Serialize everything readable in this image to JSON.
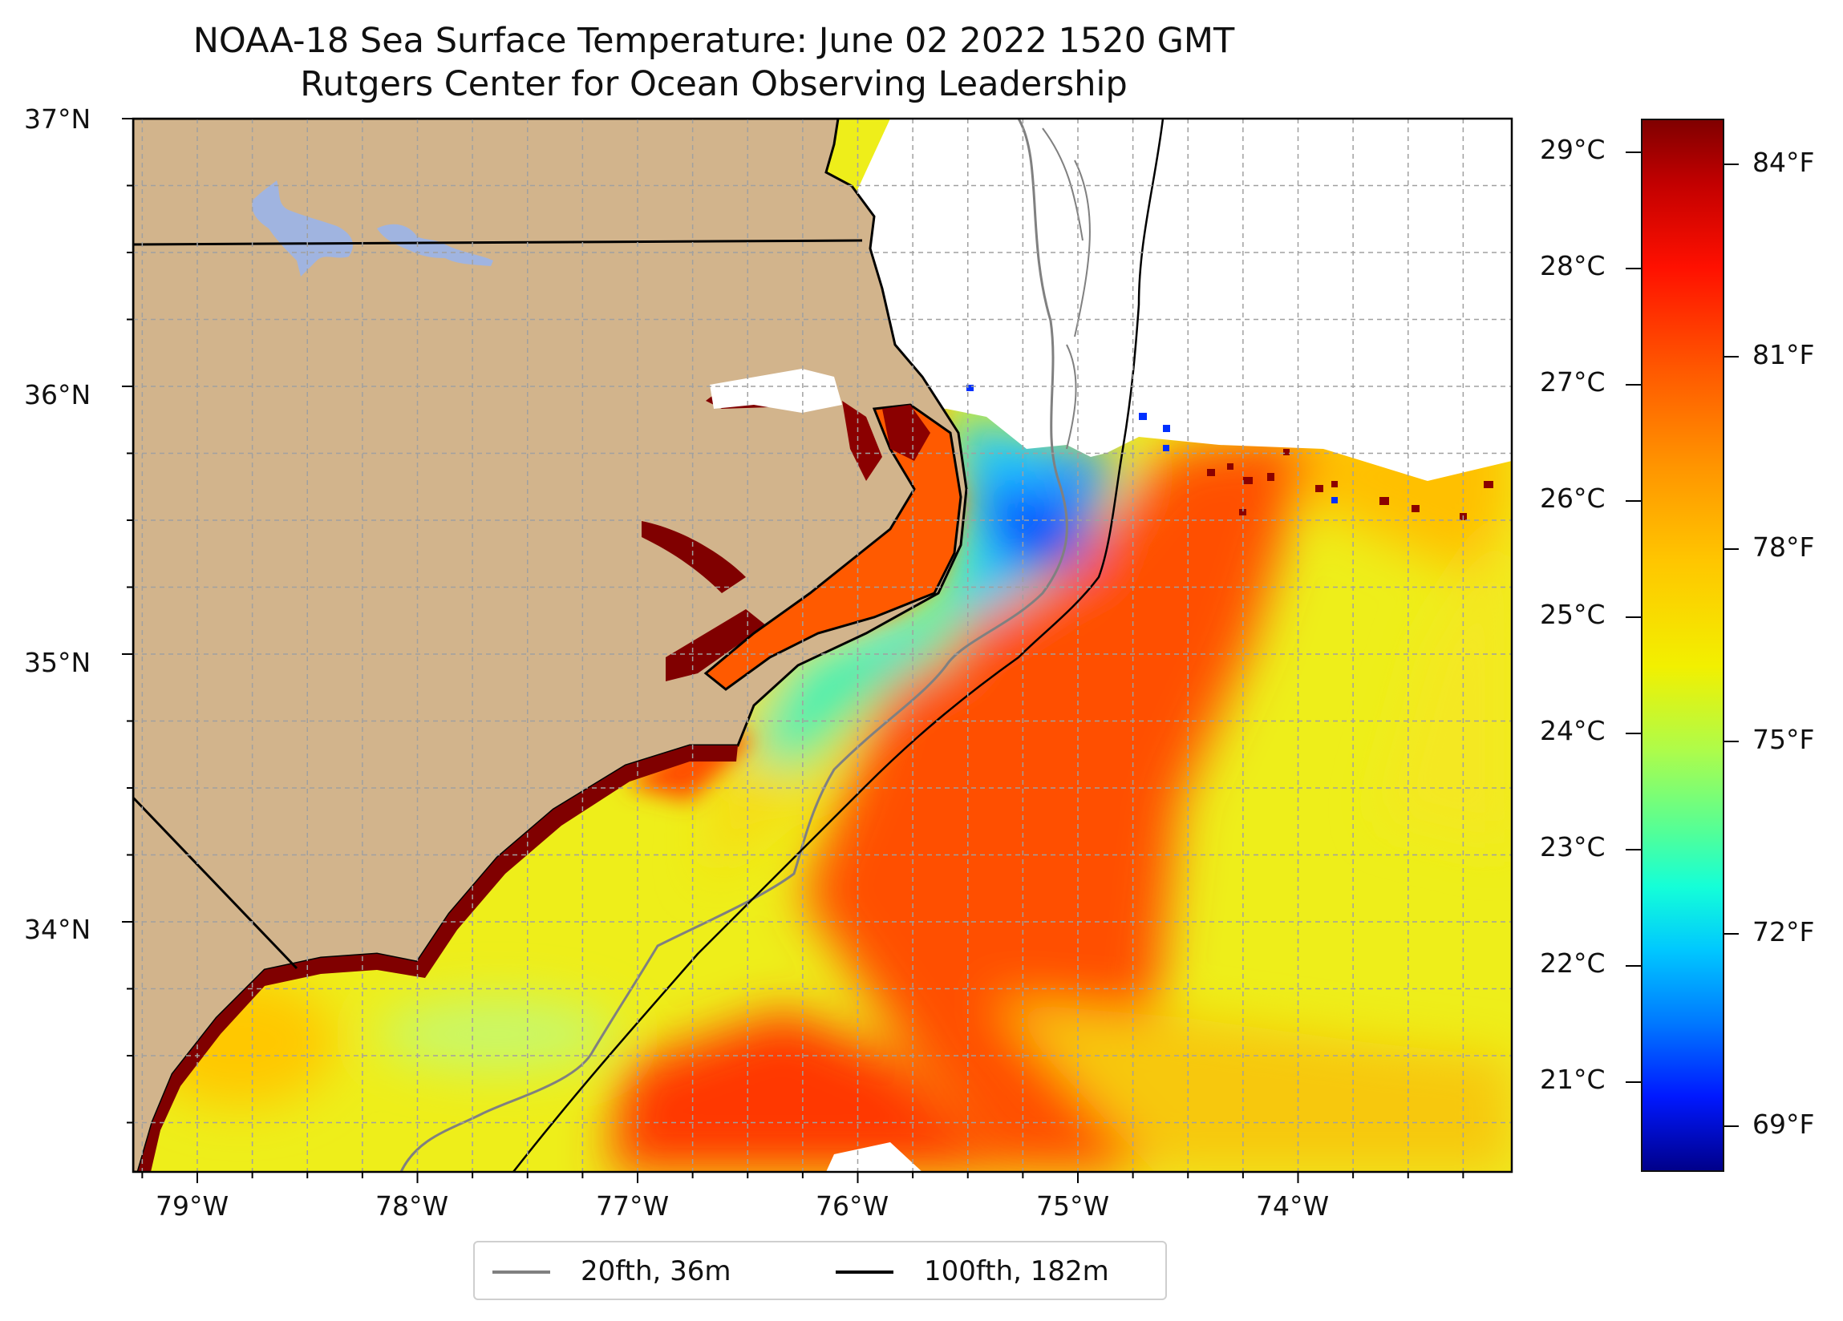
{
  "title": "NOAA-18 Sea Surface Temperature: June 02 2022 1520 GMT",
  "subtitle": "Rutgers Center for Ocean Observing Leadership",
  "lat_labels": [
    "37°N",
    "36°N",
    "35°N",
    "34°N"
  ],
  "lon_labels": [
    "79°W",
    "78°W",
    "77°W",
    "76°W",
    "75°W",
    "74°W"
  ],
  "colorbar": {
    "celsius_labels": [
      "29°C",
      "28°C",
      "27°C",
      "26°C",
      "25°C",
      "24°C",
      "23°C",
      "22°C",
      "21°C"
    ],
    "fahrenheit_labels": [
      "84°F",
      "81°F",
      "78°F",
      "75°F",
      "72°F",
      "69°F"
    ],
    "colors": [
      "#800000",
      "#ff1000",
      "#ff9500",
      "#f2f000",
      "#50ff9a",
      "#00c8ff",
      "#0018ff",
      "#00008a"
    ]
  },
  "legend": [
    {
      "label": "20fth, 36m",
      "color": "#808080"
    },
    {
      "label": "100fth, 182m",
      "color": "#000000"
    }
  ],
  "colors": {
    "land": "#d2b48c",
    "lake": "#a0b4e0",
    "cloud_mask": "#ffffff",
    "grid": "#a0a0a0"
  }
}
